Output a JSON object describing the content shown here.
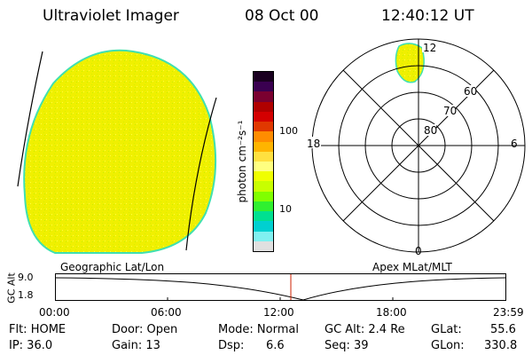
{
  "header": {
    "instrument": "Ultraviolet Imager",
    "date": "08 Oct 00",
    "time": "12:40:12 UT"
  },
  "colorbar": {
    "label": "photon cm⁻²s⁻¹",
    "ticks": [
      "100",
      "10"
    ],
    "colors": [
      "#1a0020",
      "#3a0050",
      "#7a0030",
      "#b00000",
      "#d40000",
      "#e03800",
      "#ff8c00",
      "#ffb400",
      "#ffe040",
      "#ffff80",
      "#f0ff00",
      "#c8ff00",
      "#80ff00",
      "#30f030",
      "#00e090",
      "#00d0d0",
      "#80f0f0",
      "#e0e0e0"
    ]
  },
  "polar": {
    "lat_labels": [
      "80",
      "70",
      "60"
    ],
    "mlt_labels": {
      "top": "12",
      "left": "18",
      "right": "6",
      "bottom": "0"
    }
  },
  "altitude_plot": {
    "ylabel": "GC Alt",
    "ytick_top": "9.0",
    "ytick_bottom": "1.8",
    "left_title": "Geographic Lat/Lon",
    "right_title": "Apex MLat/MLT",
    "xticks": [
      "00:00",
      "06:00",
      "12:00",
      "18:00",
      "23:59"
    ],
    "marker_color": "#cc2200"
  },
  "status": {
    "flt": "Flt: HOME",
    "ip": "IP: 36.0",
    "door": "Door: Open",
    "gain": "Gain: 13",
    "mode": "Mode: Normal",
    "dsp_label": "Dsp:",
    "dsp_value": "6.6",
    "gcalt": "GC Alt: 2.4 Re",
    "seq": "Seq: 39",
    "glat_label": "GLat:",
    "glat_value": "55.6",
    "glon_label": "GLon:",
    "glon_value": "330.8"
  }
}
